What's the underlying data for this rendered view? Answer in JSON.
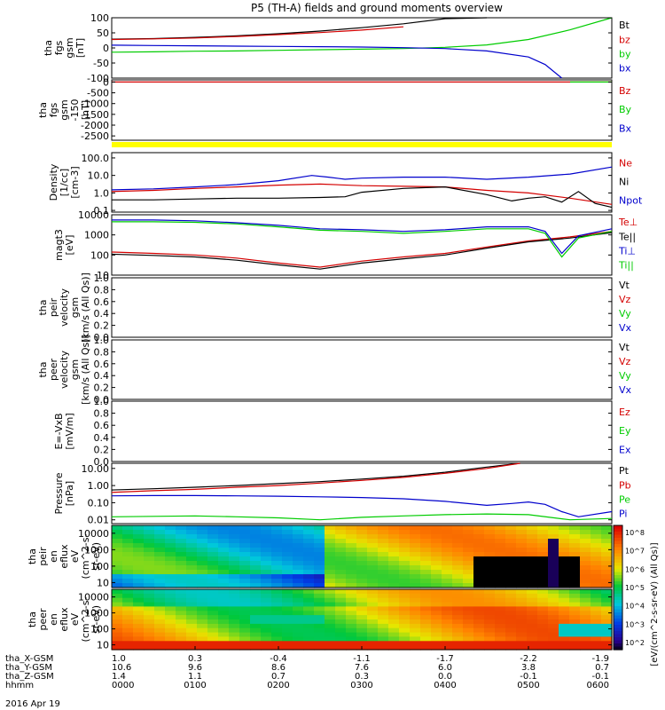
{
  "title": "P5 (TH-A) fields and ground moments overview",
  "date_label": "2016 Apr 19",
  "chart_data": [
    {
      "type": "line",
      "id": "fgs",
      "ylabel": [
        "tha",
        "fgs",
        "gsm",
        "[nT]"
      ],
      "ylim": [
        -100,
        100
      ],
      "yticks": [
        "100",
        "50",
        "0",
        "-50",
        "-100"
      ],
      "ytick_values": [
        100,
        50,
        0,
        -50,
        -100
      ],
      "legend": [
        "Bt",
        "bz",
        "by",
        "bx"
      ],
      "legend_colors": [
        "#000000",
        "#d40000",
        "#00cc00",
        "#0000cc"
      ],
      "series": [
        {
          "name": "Bt",
          "color": "#000000",
          "x": [
            0,
            0.5,
            1,
            1.5,
            2,
            2.5,
            3,
            3.5,
            4,
            4.5
          ],
          "y": [
            29,
            31,
            35,
            40,
            47,
            56,
            67,
            80,
            97,
            118
          ]
        },
        {
          "name": "bz",
          "color": "#d40000",
          "x": [
            0,
            0.5,
            1,
            1.5,
            2,
            2.5,
            3,
            3.5
          ],
          "y": [
            28,
            30,
            33,
            38,
            44,
            51,
            59,
            70
          ]
        },
        {
          "name": "by",
          "color": "#00cc00",
          "x": [
            0,
            0.5,
            1,
            1.5,
            2,
            2.5,
            3,
            3.5,
            4,
            4.5,
            5,
            5.5,
            6
          ],
          "y": [
            -14,
            -13,
            -11,
            -10,
            -8,
            -6,
            -4,
            -2,
            2,
            10,
            28,
            60,
            105
          ]
        },
        {
          "name": "bx",
          "color": "#0000cc",
          "x": [
            0,
            0.5,
            1,
            1.5,
            2,
            2.5,
            3,
            3.5,
            4,
            4.5,
            5,
            5.2,
            5.4
          ],
          "y": [
            9,
            8,
            7,
            6,
            5,
            4,
            3,
            1,
            -2,
            -10,
            -30,
            -55,
            -100
          ]
        }
      ]
    },
    {
      "type": "line",
      "id": "fgs_dsl",
      "ylabel": [
        "tha",
        "fgs",
        "gsm",
        "-150",
        "[nT]"
      ],
      "ylim": [
        -2700,
        100
      ],
      "yticks": [
        "0",
        "-500",
        "-1000",
        "-1500",
        "-2000",
        "-2500"
      ],
      "ytick_values": [
        0,
        -500,
        -1000,
        -1500,
        -2000,
        -2500
      ],
      "legend": [
        "Bz",
        "By",
        "Bx"
      ],
      "legend_colors": [
        "#d40000",
        "#00cc00",
        "#0000cc"
      ],
      "series": [
        {
          "name": "Bz",
          "color": "#d40000",
          "x": [
            0,
            6
          ],
          "y": [
            0,
            0
          ]
        },
        {
          "name": "By",
          "color": "#00cc00",
          "x": [
            5.5,
            6
          ],
          "y": [
            0,
            0
          ]
        }
      ]
    },
    {
      "type": "bar",
      "id": "mode_bar",
      "color": "#ffff00"
    },
    {
      "type": "line",
      "id": "density",
      "ylabel": [
        "Density",
        "[1/cc]",
        "[cm-3]"
      ],
      "scale": "log",
      "ylim": [
        0.08,
        200
      ],
      "yticks": [
        "100.0",
        "10.0",
        "1.0",
        "0.1"
      ],
      "ytick_values": [
        100,
        10,
        1,
        0.1
      ],
      "legend": [
        "Ne",
        "Ni",
        "Npot"
      ],
      "legend_colors": [
        "#d40000",
        "#000000",
        "#0000cc"
      ],
      "series": [
        {
          "name": "Ne",
          "color": "#d40000",
          "x": [
            0,
            0.5,
            1,
            1.5,
            2,
            2.5,
            3,
            3.5,
            4,
            4.5,
            5,
            5.5,
            6
          ],
          "y": [
            1.2,
            1.4,
            1.8,
            2.2,
            2.8,
            3.2,
            2.6,
            2.4,
            2.2,
            1.4,
            1.0,
            0.5,
            0.22
          ]
        },
        {
          "name": "Ni",
          "color": "#000000",
          "x": [
            0,
            0.5,
            1,
            1.5,
            2,
            2.5,
            2.8,
            3,
            3.5,
            4,
            4.5,
            4.8,
            5,
            5.2,
            5.4,
            5.6,
            5.8,
            6
          ],
          "y": [
            0.4,
            0.4,
            0.45,
            0.5,
            0.5,
            0.55,
            0.6,
            1.1,
            1.8,
            2.2,
            0.8,
            0.35,
            0.5,
            0.6,
            0.3,
            1.2,
            0.25,
            0.15
          ]
        },
        {
          "name": "Npot",
          "color": "#0000cc",
          "x": [
            0,
            0.5,
            1,
            1.5,
            2,
            2.4,
            2.6,
            2.8,
            3,
            3.5,
            4,
            4.5,
            5,
            5.5,
            6
          ],
          "y": [
            1.5,
            1.7,
            2.2,
            3.0,
            5.0,
            10.0,
            8.0,
            6.0,
            7.0,
            8.0,
            8.0,
            6.0,
            8.0,
            12.0,
            30.0
          ]
        }
      ]
    },
    {
      "type": "line",
      "id": "temperature",
      "ylabel": [
        "magt3",
        "[eV]"
      ],
      "scale": "log",
      "ylim": [
        10,
        10000
      ],
      "yticks": [
        "10000",
        "1000",
        "100",
        "10"
      ],
      "ytick_values": [
        10000,
        1000,
        100,
        10
      ],
      "legend": [
        "Te⊥",
        "Te||",
        "Ti⊥",
        "Ti||"
      ],
      "legend_colors": [
        "#d40000",
        "#000000",
        "#0000cc",
        "#00cc00"
      ],
      "series": [
        {
          "name": "Te⊥",
          "color": "#d40000",
          "x": [
            0,
            0.5,
            1,
            1.5,
            2,
            2.5,
            3,
            3.5,
            4,
            4.5,
            5,
            5.5,
            6
          ],
          "y": [
            140,
            120,
            100,
            70,
            40,
            25,
            50,
            80,
            120,
            250,
            500,
            800,
            1500
          ]
        },
        {
          "name": "Te||",
          "color": "#000000",
          "x": [
            0,
            0.5,
            1,
            1.5,
            2,
            2.5,
            3,
            3.5,
            4,
            4.5,
            5,
            5.5,
            6
          ],
          "y": [
            110,
            95,
            80,
            55,
            32,
            20,
            40,
            65,
            100,
            220,
            450,
            700,
            1300
          ]
        },
        {
          "name": "Ti⊥",
          "color": "#0000cc",
          "x": [
            0,
            0.5,
            1,
            1.5,
            2,
            2.5,
            3,
            3.5,
            4,
            4.5,
            5,
            5.2,
            5.4,
            5.6,
            6
          ],
          "y": [
            5500,
            5500,
            5000,
            4000,
            3000,
            2000,
            1800,
            1500,
            1800,
            2500,
            2500,
            1500,
            120,
            900,
            2000
          ]
        },
        {
          "name": "Ti||",
          "color": "#00cc00",
          "x": [
            0,
            0.5,
            1,
            1.5,
            2,
            2.5,
            3,
            3.5,
            4,
            4.5,
            5,
            5.2,
            5.4,
            5.6,
            6
          ],
          "y": [
            4500,
            4500,
            4200,
            3500,
            2500,
            1700,
            1500,
            1200,
            1500,
            2000,
            2000,
            1200,
            80,
            700,
            1500
          ]
        }
      ]
    },
    {
      "type": "line",
      "id": "peir_velocity",
      "ylabel": [
        "tha",
        "peir",
        "velocity",
        "gsm",
        "[km/s (All Qs)]"
      ],
      "ylim": [
        0,
        1
      ],
      "yticks": [
        "1.0",
        "0.8",
        "0.6",
        "0.4",
        "0.2",
        "0.0"
      ],
      "ytick_values": [
        1.0,
        0.8,
        0.6,
        0.4,
        0.2,
        0.0
      ],
      "legend": [
        "Vt",
        "Vz",
        "Vy",
        "Vx"
      ],
      "legend_colors": [
        "#000000",
        "#d40000",
        "#00cc00",
        "#0000cc"
      ],
      "series": []
    },
    {
      "type": "line",
      "id": "peer_velocity",
      "ylabel": [
        "tha",
        "peer",
        "velocity",
        "gsm",
        "[km/s (All Qs)]"
      ],
      "ylim": [
        0,
        1
      ],
      "yticks": [
        "1.0",
        "0.8",
        "0.6",
        "0.4",
        "0.2",
        "0.0"
      ],
      "ytick_values": [
        1.0,
        0.8,
        0.6,
        0.4,
        0.2,
        0.0
      ],
      "legend": [
        "Vt",
        "Vz",
        "Vy",
        "Vx"
      ],
      "legend_colors": [
        "#000000",
        "#d40000",
        "#00cc00",
        "#0000cc"
      ],
      "series": []
    },
    {
      "type": "line",
      "id": "efield",
      "ylabel": [
        "E=-VxB",
        "[mV/m]"
      ],
      "ylim": [
        0,
        1
      ],
      "yticks": [
        "1.0",
        "0.8",
        "0.6",
        "0.4",
        "0.2",
        "0.0"
      ],
      "ytick_values": [
        1.0,
        0.8,
        0.6,
        0.4,
        0.2,
        0.0
      ],
      "legend": [
        "Ez",
        "Ey",
        "Ex"
      ],
      "legend_colors": [
        "#d40000",
        "#00cc00",
        "#0000cc"
      ],
      "series": []
    },
    {
      "type": "line",
      "id": "pressure",
      "ylabel": [
        "Pressure",
        "[nPa]"
      ],
      "scale": "log",
      "ylim": [
        0.006,
        20
      ],
      "yticks": [
        "10.00",
        "1.00",
        "0.10",
        "0.01"
      ],
      "ytick_values": [
        10,
        1,
        0.1,
        0.01
      ],
      "legend": [
        "Pt",
        "Pb",
        "Pe",
        "Pi"
      ],
      "legend_colors": [
        "#000000",
        "#d40000",
        "#00cc00",
        "#0000cc"
      ],
      "series": [
        {
          "name": "Pt",
          "color": "#000000",
          "x": [
            0,
            0.5,
            1,
            1.5,
            2,
            2.5,
            3,
            3.5,
            4,
            4.5,
            4.9
          ],
          "y": [
            0.55,
            0.65,
            0.8,
            1.0,
            1.3,
            1.7,
            2.4,
            3.5,
            6.0,
            12.0,
            22.0
          ]
        },
        {
          "name": "Pb",
          "color": "#d40000",
          "x": [
            0,
            0.5,
            1,
            1.5,
            2,
            2.5,
            3,
            3.5,
            4,
            4.5,
            4.9
          ],
          "y": [
            0.4,
            0.5,
            0.6,
            0.8,
            1.0,
            1.4,
            2.0,
            3.0,
            5.2,
            10.0,
            20.0
          ]
        },
        {
          "name": "Pe",
          "color": "#00cc00",
          "x": [
            0,
            0.5,
            1,
            1.5,
            2,
            2.5,
            3,
            3.5,
            4,
            4.5,
            5,
            5.5,
            6
          ],
          "y": [
            0.015,
            0.016,
            0.017,
            0.015,
            0.013,
            0.01,
            0.014,
            0.017,
            0.02,
            0.022,
            0.02,
            0.01,
            0.012
          ]
        },
        {
          "name": "Pi",
          "color": "#0000cc",
          "x": [
            0,
            0.5,
            1,
            1.5,
            2,
            2.5,
            3,
            3.5,
            4,
            4.5,
            4.8,
            5,
            5.2,
            5.4,
            5.6,
            6
          ],
          "y": [
            0.25,
            0.26,
            0.26,
            0.25,
            0.24,
            0.22,
            0.2,
            0.17,
            0.12,
            0.07,
            0.09,
            0.11,
            0.08,
            0.03,
            0.015,
            0.03
          ]
        }
      ]
    },
    {
      "type": "heatmap",
      "id": "peir_eflux",
      "ylabel": [
        "tha",
        "peir",
        "en",
        "eflux",
        "eV",
        "(cm^2-s-",
        "sr-eV)"
      ],
      "scale": "log",
      "ylim": [
        5,
        30000
      ],
      "yticks": [
        "10000",
        "1000",
        "100",
        "10"
      ],
      "ytick_values": [
        10000,
        1000,
        100,
        10
      ]
    },
    {
      "type": "heatmap",
      "id": "peer_eflux",
      "ylabel": [
        "tha",
        "peer",
        "en",
        "eflux",
        "eV",
        "(cm^2-s-",
        "sr-eV)"
      ],
      "scale": "log",
      "ylim": [
        5,
        30000
      ],
      "yticks": [
        "10000",
        "1000",
        "100",
        "10"
      ],
      "ytick_values": [
        10000,
        1000,
        100,
        10
      ]
    }
  ],
  "colorbar": {
    "label": "[eV/(cm^2-s-sr-eV) (All Qs)]",
    "ticks": [
      "10^8",
      "10^7",
      "10^6",
      "10^5",
      "10^4",
      "10^3",
      "10^2"
    ]
  },
  "x_axis": {
    "tick_hours": [
      0,
      1,
      2,
      3,
      4,
      5,
      6
    ],
    "rows": [
      {
        "label": "tha_X-GSM",
        "values": [
          "1.0",
          "0.3",
          "-0.4",
          "-1.1",
          "-1.7",
          "-2.2",
          "-1.9"
        ]
      },
      {
        "label": "tha_Y-GSM",
        "values": [
          "10.6",
          "9.6",
          "8.6",
          "7.6",
          "6.0",
          "3.8",
          "0.7"
        ]
      },
      {
        "label": "tha_Z-GSM",
        "values": [
          "1.4",
          "1.1",
          "0.7",
          "0.3",
          "0.0",
          "-0.1",
          "-0.1"
        ]
      },
      {
        "label": "hhmm",
        "values": [
          "0000",
          "0100",
          "0200",
          "0300",
          "0400",
          "0500",
          "0600"
        ]
      }
    ]
  }
}
